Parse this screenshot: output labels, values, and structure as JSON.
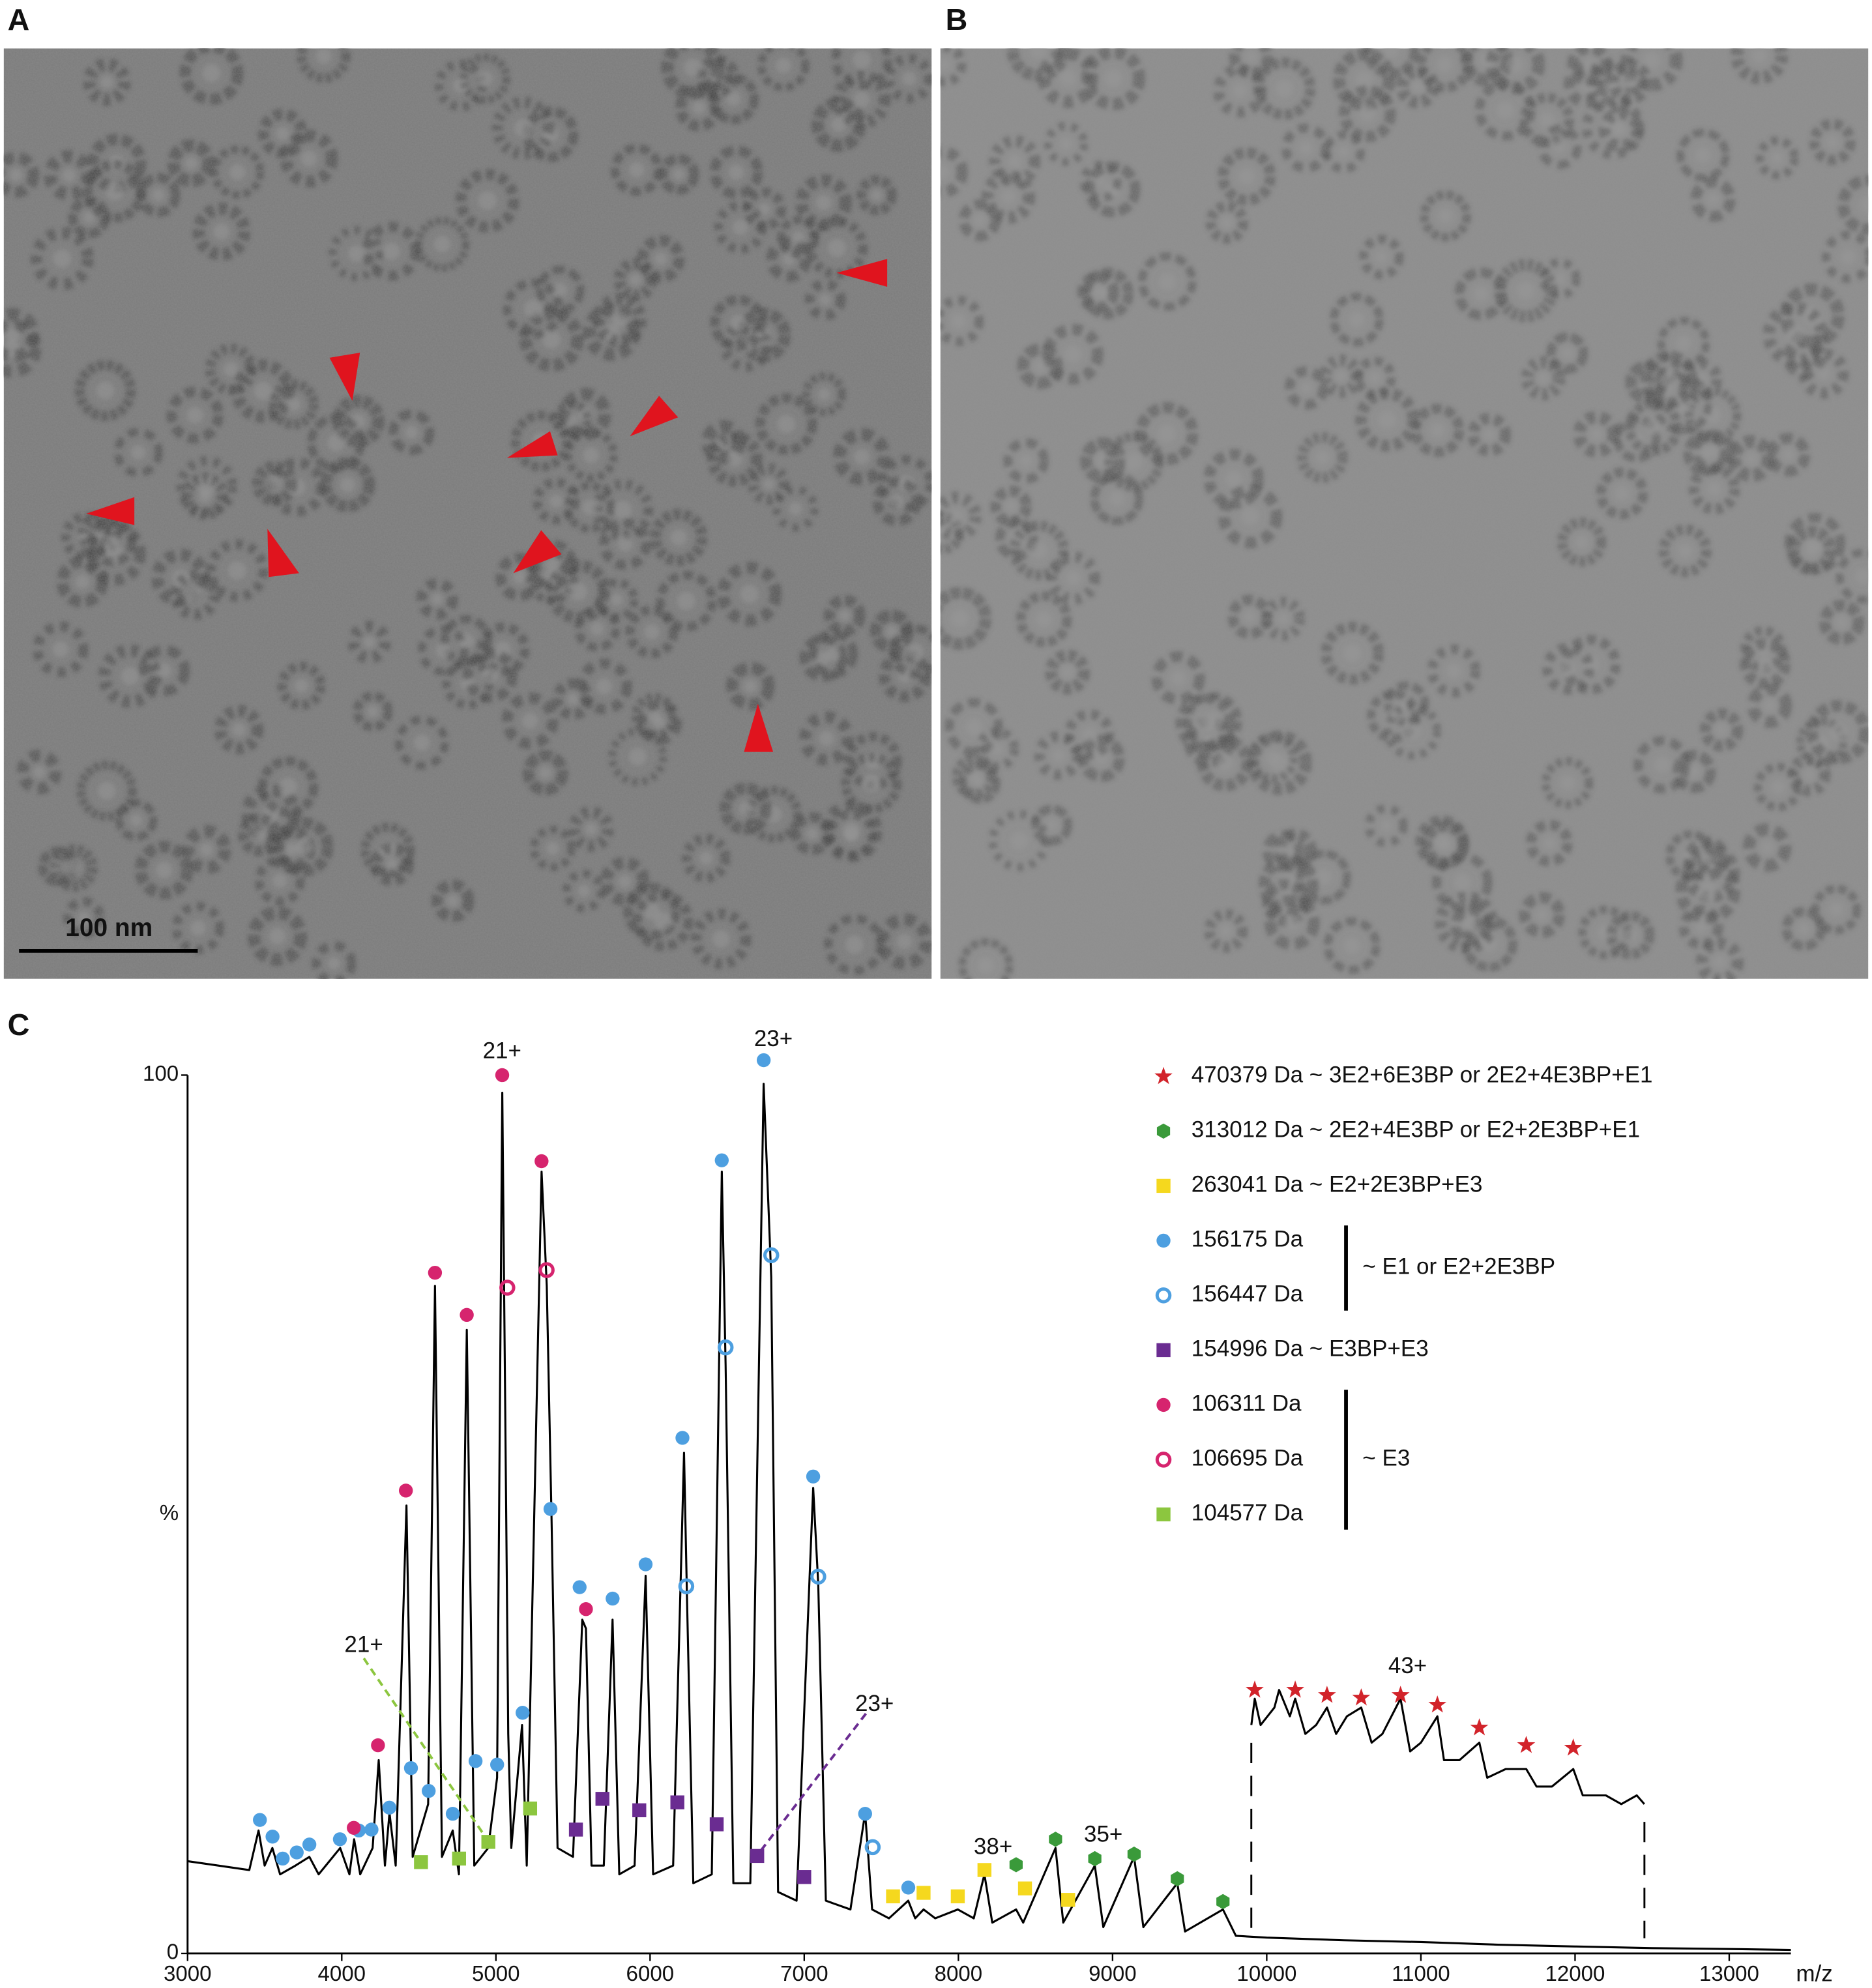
{
  "panel_labels": [
    "A",
    "B",
    "C"
  ],
  "scale_bar_label": "100 nm",
  "chart_data": {
    "type": "line",
    "x_label": "m/z",
    "y_label": "%",
    "xlim": [
      3000,
      13400
    ],
    "ylim": [
      0,
      100
    ],
    "xticks": [
      3000,
      4000,
      5000,
      6000,
      7000,
      8000,
      9000,
      10000,
      11000,
      12000,
      13000
    ],
    "yticks": [
      0,
      100
    ],
    "trace": {
      "color": "#000000",
      "x": [
        3000,
        3200,
        3400,
        3460,
        3500,
        3550,
        3600,
        3700,
        3790,
        3850,
        3990,
        4050,
        4080,
        4120,
        4200,
        4240,
        4280,
        4310,
        4350,
        4420,
        4460,
        4560,
        4605,
        4650,
        4720,
        4760,
        4811,
        4860,
        4950,
        5008,
        5041,
        5080,
        5100,
        5170,
        5200,
        5296,
        5330,
        5360,
        5400,
        5500,
        5560,
        5584,
        5620,
        5700,
        5757,
        5800,
        5900,
        5971,
        6020,
        6150,
        6220,
        6240,
        6280,
        6400,
        6465,
        6490,
        6540,
        6650,
        6737,
        6786,
        6830,
        6950,
        7058,
        7091,
        7140,
        7300,
        7395,
        7440,
        7550,
        7675,
        7720,
        7774,
        7850,
        7996,
        8100,
        8169,
        8220,
        8374,
        8420,
        8630,
        8680,
        8885,
        8940,
        9140,
        9200,
        9420,
        9470,
        9716,
        9800,
        10000,
        10500,
        11000,
        11500,
        12000,
        12500,
        13000,
        13400
      ],
      "values": [
        10.5,
        10,
        9.5,
        14,
        10,
        12,
        9,
        10,
        11,
        9,
        12,
        9,
        13,
        9,
        12,
        22,
        10,
        16,
        10,
        51,
        11,
        17,
        76,
        11,
        14,
        9,
        71,
        10,
        12,
        20,
        98,
        25,
        12,
        26,
        10,
        89,
        76,
        50,
        12,
        11,
        38,
        37,
        10,
        10,
        38,
        9,
        10,
        43,
        9,
        10,
        57,
        40,
        8,
        9,
        89,
        67,
        8,
        8,
        99,
        77,
        7,
        6,
        53,
        42,
        6,
        5,
        16,
        5,
        4,
        6,
        4,
        5,
        4,
        5,
        4,
        9,
        3.5,
        5,
        3.5,
        12,
        3.5,
        10,
        3,
        11,
        3,
        8,
        2.5,
        5,
        2,
        1.8,
        1.5,
        1.3,
        1,
        0.8,
        0.6,
        0.5,
        0.4
      ]
    },
    "inset_trace": {
      "color": "#000000",
      "x": [
        9900,
        9922,
        9960,
        10050,
        10080,
        10150,
        10185,
        10250,
        10320,
        10391,
        10450,
        10520,
        10613,
        10680,
        10750,
        10868,
        10930,
        11000,
        11107,
        11150,
        11250,
        11379,
        11430,
        11550,
        11683,
        11750,
        11850,
        11988,
        12050,
        12200,
        12300,
        12400,
        12450
      ],
      "values": [
        26,
        29,
        26,
        28,
        30,
        27,
        29,
        25,
        26,
        28,
        25,
        27,
        28,
        24,
        25,
        29,
        23,
        24,
        27,
        22,
        22,
        24,
        20,
        21,
        21,
        19,
        19,
        21,
        18,
        18,
        17,
        18,
        17
      ]
    },
    "series": [
      {
        "name": "470379 Da ~ 3E2+6E3BP or 2E2+4E3BP+E1",
        "color": "#d2232a",
        "marker": "star",
        "filled": true,
        "x": [
          9922,
          10185,
          10391,
          10613,
          10868,
          11107,
          11379,
          11683,
          11988
        ],
        "values": [
          30,
          30,
          29.4,
          29.1,
          29.4,
          28.3,
          25.7,
          23.7,
          23.4
        ]
      },
      {
        "name": "313012 Da ~ 2E2+4E3BP or E2+2E3BP+E1",
        "color": "#3a9a3a",
        "marker": "hexagon",
        "filled": true,
        "x": [
          8374,
          8630,
          8885,
          9140,
          9420,
          9716
        ],
        "values": [
          10.1,
          13,
          10.8,
          11.3,
          8.5,
          5.9
        ]
      },
      {
        "name": "263041 Da ~ E2+2E3BP+E3",
        "color": "#f5d81e",
        "marker": "square",
        "filled": true,
        "x": [
          7576,
          7774,
          7996,
          8169,
          8432,
          8712
        ],
        "values": [
          6.5,
          6.9,
          6.5,
          9.5,
          7.4,
          6.1
        ]
      },
      {
        "name": "156175 Da",
        "color": "#4d9fe0",
        "marker": "circle",
        "filled": true,
        "x": [
          3469,
          3551,
          3617,
          3708,
          3790,
          3988,
          4111,
          4193,
          4309,
          4449,
          4564,
          4720,
          4868,
          5008,
          5173,
          5354,
          5543,
          5757,
          5971,
          6210,
          6465,
          6737,
          7058,
          7395,
          7675
        ],
        "values": [
          15.2,
          13.3,
          10.8,
          11.5,
          12.4,
          13,
          14,
          14.1,
          16.6,
          21.1,
          18.5,
          15.9,
          21.9,
          21.5,
          27.4,
          50.6,
          41.7,
          40.4,
          44.3,
          58.7,
          90.3,
          101.7,
          54.3,
          15.9,
          7.5
        ]
      },
      {
        "name": "156447 Da",
        "color": "#4d9fe0",
        "marker": "circle",
        "filled": false,
        "x": [
          6235,
          6490,
          6786,
          7091,
          7444
        ],
        "values": [
          41.8,
          69,
          79.5,
          42.9,
          12.1
        ]
      },
      {
        "name": "154996 Da ~ E3BP+E3",
        "color": "#6a2c91",
        "marker": "square",
        "filled": true,
        "x": [
          5519,
          5691,
          5930,
          6177,
          6432,
          6695,
          7000
        ],
        "values": [
          14.1,
          17.6,
          16.3,
          17.2,
          14.7,
          11.1,
          8.7
        ]
      },
      {
        "name": "106311 Da",
        "color": "#d6246e",
        "marker": "circle",
        "filled": true,
        "x": [
          4078,
          4235,
          4416,
          4605,
          4811,
          5041,
          5296,
          5584
        ],
        "values": [
          14.3,
          23.7,
          52.7,
          77.5,
          72.7,
          100,
          90.2,
          39.2
        ]
      },
      {
        "name": "106695 Da",
        "color": "#d6246e",
        "marker": "circle",
        "filled": false,
        "x": [
          5074,
          5329
        ],
        "values": [
          75.8,
          77.8
        ]
      },
      {
        "name": "104577 Da",
        "color": "#8cc63f",
        "marker": "square",
        "filled": true,
        "x": [
          4514,
          4761,
          4951,
          5222
        ],
        "values": [
          10.4,
          10.8,
          12.7,
          16.5
        ]
      }
    ],
    "legend_groups": [
      "~ E1 or E2+2E3BP",
      "~ E3"
    ],
    "annotations": [
      {
        "text": "21+",
        "x": 5040,
        "y": 102.6
      },
      {
        "text": "23+",
        "x": 6800,
        "y": 104
      },
      {
        "text": "21+",
        "x": 4143,
        "y": 35,
        "color": "#8cc63f",
        "line_x": [
          4143,
          4950
        ],
        "line_y": [
          33.6,
          12.8
        ]
      },
      {
        "text": "23+",
        "x": 7456,
        "y": 28.3,
        "color": "#6a2c91",
        "line_x": [
          7400,
          6692
        ],
        "line_y": [
          27.3,
          11.1
        ]
      },
      {
        "text": "38+",
        "x": 8225,
        "y": 12
      },
      {
        "text": "35+",
        "x": 8940,
        "y": 13.4
      },
      {
        "text": "43+",
        "x": 10914,
        "y": 32.6
      }
    ]
  }
}
